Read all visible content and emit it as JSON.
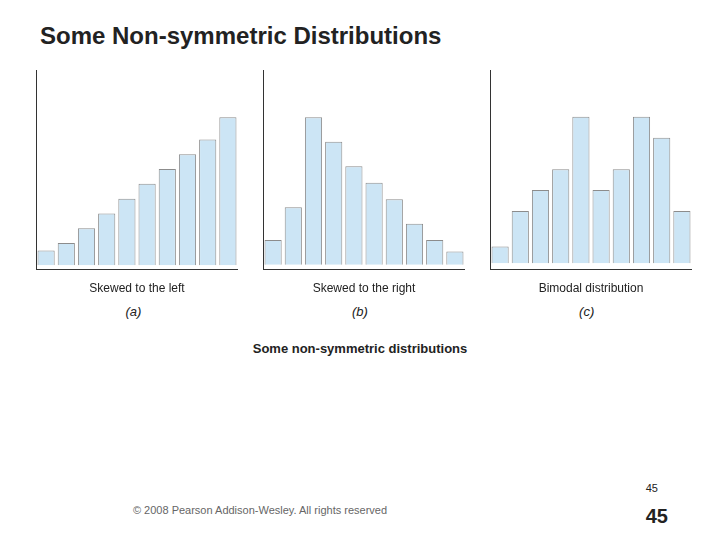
{
  "title": "Some Non-symmetric Distributions",
  "annotations": [
    "Some non-symmetric distributions",
    "© 2008 Pearson Addison-Wesley. All rights reserved",
    "45",
    "45"
  ],
  "chart_data": [
    {
      "type": "bar",
      "xlabel": "Skewed to the left",
      "annotations": [
        "(a)"
      ],
      "categories": [
        null,
        null,
        null,
        null,
        null,
        null,
        null,
        null,
        null,
        null
      ],
      "values": [
        1,
        1.5,
        2.5,
        3.5,
        4.5,
        5.5,
        6.5,
        7.5,
        8.5,
        10
      ],
      "color": "#cce5f5",
      "ylim": [
        -0.3,
        13.2
      ],
      "tick_labels": false,
      "grid": false
    },
    {
      "type": "bar",
      "xlabel": "Skewed to the right",
      "annotations": [
        "(b)"
      ],
      "categories": [
        null,
        null,
        null,
        null,
        null,
        null,
        null,
        null,
        null,
        null
      ],
      "values": [
        1.5,
        3.5,
        9,
        7.5,
        6,
        5,
        4,
        2.5,
        1.5,
        0.8
      ],
      "color": "#cce5f5",
      "ylim": [
        -0.3,
        11.88
      ],
      "tick_labels": false,
      "grid": false
    },
    {
      "type": "bar",
      "xlabel": "Bimodal distribution",
      "annotations": [
        "(c)"
      ],
      "categories": [
        null,
        null,
        null,
        null,
        null,
        null,
        null,
        null,
        null,
        null
      ],
      "values": [
        0.8,
        2.5,
        3.5,
        4.5,
        7,
        3.5,
        4.5,
        7,
        6,
        2.5
      ],
      "color": "#cce5f5",
      "ylim": [
        -0.3,
        9.24
      ],
      "tick_labels": false,
      "grid": false
    }
  ]
}
